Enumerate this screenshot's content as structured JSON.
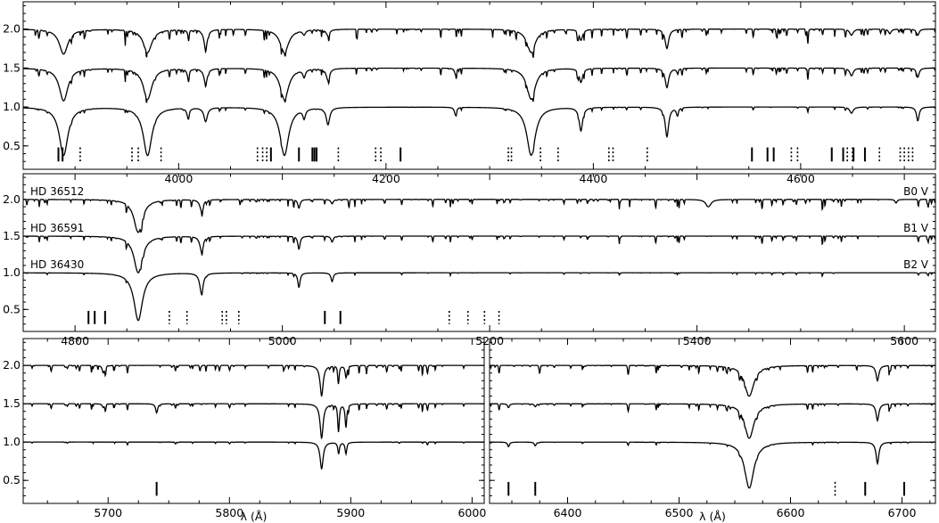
{
  "chart_data": [
    {
      "type": "line",
      "panel": "top",
      "xlim": [
        3850,
        4730
      ],
      "ylim": [
        0.2,
        2.35
      ],
      "xticks": [
        4000,
        4200,
        4400,
        4600
      ],
      "yticks": [
        0.5,
        1.0,
        1.5,
        2.0
      ],
      "continuum_levels": [
        2.0,
        1.5,
        1.0
      ],
      "lines": [
        {
          "w": 3889,
          "d": [
            0.32,
            0.42,
            0.62
          ],
          "wd": 5
        },
        {
          "w": 3970,
          "d": [
            0.3,
            0.4,
            0.62
          ],
          "wd": 5
        },
        {
          "w": 4026,
          "d": [
            0.25,
            0.2,
            0.18
          ],
          "wd": 2
        },
        {
          "w": 4009,
          "d": [
            0.05,
            0.1,
            0.12
          ],
          "wd": 1.5
        },
        {
          "w": 4102,
          "d": [
            0.3,
            0.4,
            0.62
          ],
          "wd": 5
        },
        {
          "w": 4121,
          "d": [
            0.06,
            0.1,
            0.12
          ],
          "wd": 1.5
        },
        {
          "w": 4144,
          "d": [
            0.08,
            0.15,
            0.22
          ],
          "wd": 2
        },
        {
          "w": 4267,
          "d": [
            0.0,
            0.08,
            0.1
          ],
          "wd": 1.2
        },
        {
          "w": 4340,
          "d": [
            0.3,
            0.4,
            0.62
          ],
          "wd": 5
        },
        {
          "w": 4388,
          "d": [
            0.14,
            0.18,
            0.3
          ],
          "wd": 2
        },
        {
          "w": 4471,
          "d": [
            0.25,
            0.25,
            0.38
          ],
          "wd": 2
        },
        {
          "w": 4481,
          "d": [
            0.0,
            0.05,
            0.1
          ],
          "wd": 1.2
        },
        {
          "w": 4686,
          "d": [
            0.06,
            0.0,
            0.0
          ],
          "wd": 1.5
        },
        {
          "w": 4713,
          "d": [
            0.08,
            0.12,
            0.18
          ],
          "wd": 1.5
        },
        {
          "w": 4649,
          "d": [
            0.08,
            0.1,
            0.08
          ],
          "wd": 2
        }
      ],
      "markers_solid": [
        3884,
        3888,
        4089,
        4116,
        4129,
        4131,
        4133,
        4214,
        4553,
        4568,
        4574,
        4630,
        4641,
        4651,
        4662
      ],
      "markers_dotted": [
        3905,
        3955,
        3961,
        3983,
        4076,
        4081,
        4085,
        4154,
        4190,
        4195,
        4318,
        4321,
        4349,
        4366,
        4415,
        4419,
        4452,
        4591,
        4597,
        4645,
        4650,
        4676,
        4696,
        4700,
        4704,
        4708
      ]
    },
    {
      "type": "line",
      "panel": "middle",
      "xlim": [
        4750,
        5630
      ],
      "ylim": [
        0.2,
        2.35
      ],
      "xticks": [
        4800,
        5000,
        5200,
        5400,
        5600
      ],
      "yticks": [
        0.5,
        1.0,
        1.5,
        2.0
      ],
      "continuum_levels": [
        2.0,
        1.5,
        1.0
      ],
      "star_labels": [
        "HD 36512",
        "HD 36591",
        "HD 36430"
      ],
      "spectral_types": [
        "B0 V",
        "B1 V",
        "B2 V"
      ],
      "lines": [
        {
          "w": 4861,
          "d": [
            0.45,
            0.5,
            0.65
          ],
          "wd": 5
        },
        {
          "w": 4922,
          "d": [
            0.15,
            0.2,
            0.28
          ],
          "wd": 2
        },
        {
          "w": 5016,
          "d": [
            0.12,
            0.18,
            0.2
          ],
          "wd": 1.3
        },
        {
          "w": 5048,
          "d": [
            0.06,
            0.08,
            0.12
          ],
          "wd": 1.3
        },
        {
          "w": 5411,
          "d": [
            0.1,
            0.0,
            0.0
          ],
          "wd": 3
        },
        {
          "w": 5592,
          "d": [
            0.05,
            0.0,
            0.0
          ],
          "wd": 1.2
        }
      ],
      "markers_solid": [
        4813,
        4819,
        4829,
        5041,
        5056
      ],
      "markers_dotted": [
        4891,
        4908,
        4942,
        4946,
        4958,
        5161,
        5179,
        5195,
        5209
      ]
    },
    {
      "type": "line",
      "panel": "bottom-left",
      "xlim": [
        5630,
        6010
      ],
      "ylim": [
        0.2,
        2.35
      ],
      "xticks": [
        5700,
        5800,
        5900,
        6000
      ],
      "yticks": [
        0.5,
        1.0,
        1.5,
        2.0
      ],
      "xlabel": "λ (Å)",
      "continuum_levels": [
        2.0,
        1.5,
        1.0
      ],
      "lines": [
        {
          "w": 5876,
          "d": [
            0.4,
            0.45,
            0.35
          ],
          "wd": 1.5
        },
        {
          "w": 5890,
          "d": [
            0.15,
            0.3,
            0.15
          ],
          "wd": 0.8
        },
        {
          "w": 5896,
          "d": [
            0.15,
            0.3,
            0.15
          ],
          "wd": 0.8
        },
        {
          "w": 5696,
          "d": [
            0.1,
            0.05,
            0.0
          ],
          "wd": 1.0
        },
        {
          "w": 5740,
          "d": [
            0.0,
            0.12,
            0.0
          ],
          "wd": 1.0
        }
      ],
      "markers_solid": [
        5740
      ],
      "markers_dotted": []
    },
    {
      "type": "line",
      "panel": "bottom-right",
      "xlim": [
        6330,
        6730
      ],
      "ylim": [
        0.2,
        2.35
      ],
      "xticks": [
        6400,
        6500,
        6600,
        6700
      ],
      "yticks": [
        0.5,
        1.0,
        1.5,
        2.0
      ],
      "xlabel": "λ (Å)",
      "continuum_levels": [
        2.0,
        1.5,
        1.0
      ],
      "lines": [
        {
          "w": 6563,
          "d": [
            0.4,
            0.45,
            0.6
          ],
          "wd": 5
        },
        {
          "w": 6678,
          "d": [
            0.2,
            0.22,
            0.28
          ],
          "wd": 1.5
        },
        {
          "w": 6347,
          "d": [
            0.0,
            0.05,
            0.06
          ],
          "wd": 1.0
        },
        {
          "w": 6371,
          "d": [
            0.0,
            0.04,
            0.05
          ],
          "wd": 1.0
        }
      ],
      "markers_solid": [
        6347,
        6371,
        6667,
        6702
      ],
      "markers_dotted": [
        6640
      ]
    }
  ]
}
